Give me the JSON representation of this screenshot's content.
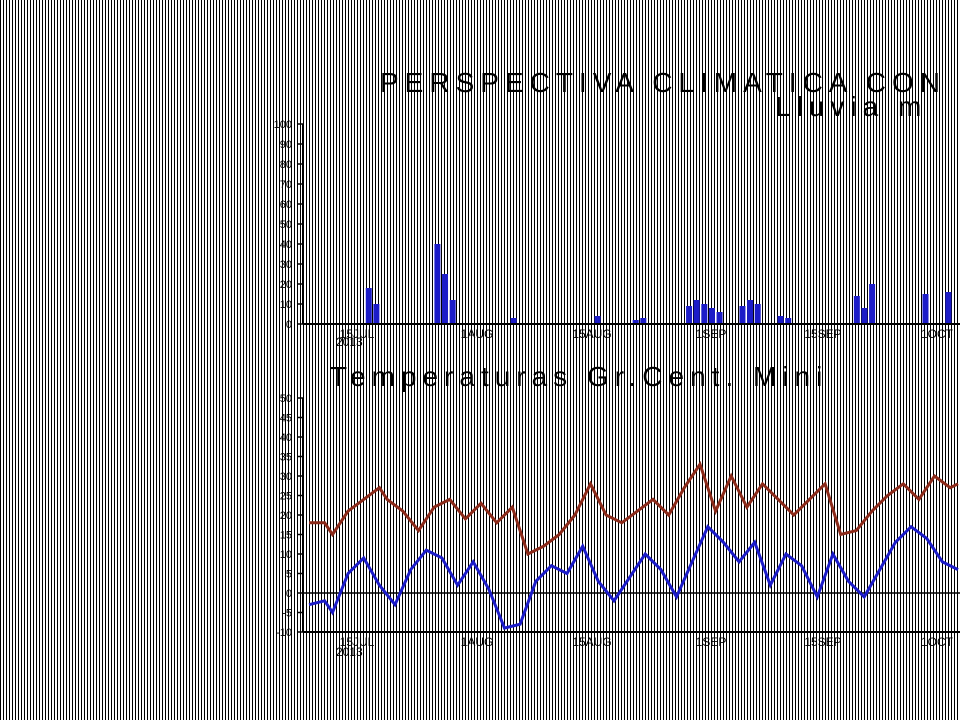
{
  "colors": {
    "rain": "#1c1cc8",
    "tmax": "#8b2a1a",
    "tmin": "#1c1cc8",
    "axis": "#000000"
  },
  "chart_data": [
    {
      "type": "bar",
      "title": "PERSPECTIVA   CLIMATICA   CON",
      "subtitle": "Lluvia   m",
      "ylim": [
        0,
        100
      ],
      "yticks": [
        "0",
        "10",
        "20",
        "30",
        "40",
        "50",
        "60",
        "70",
        "80",
        "90",
        "100"
      ],
      "xticks": [
        "15JUL",
        "1AUG",
        "15AUG",
        "1SEP",
        "15SEP",
        "1OCT"
      ],
      "year_label": "2013",
      "xlim": [
        0,
        83
      ],
      "series": [
        {
          "values": [
            [
              6,
              18
            ],
            [
              7,
              10
            ],
            [
              15,
              40
            ],
            [
              16,
              25
            ],
            [
              17,
              12
            ],
            [
              25,
              3
            ],
            [
              36,
              4
            ],
            [
              41,
              2
            ],
            [
              42,
              3
            ],
            [
              48,
              9
            ],
            [
              49,
              12
            ],
            [
              50,
              10
            ],
            [
              51,
              8
            ],
            [
              52,
              6
            ],
            [
              55,
              9
            ],
            [
              56,
              12
            ],
            [
              57,
              10
            ],
            [
              60,
              4
            ],
            [
              61,
              3
            ],
            [
              70,
              14
            ],
            [
              71,
              8
            ],
            [
              72,
              20
            ],
            [
              79,
              15
            ],
            [
              82,
              16
            ]
          ]
        }
      ]
    },
    {
      "type": "line",
      "title": "Temperaturas   Gr.Cent.   Mini",
      "ylim": [
        -10,
        50
      ],
      "yticks": [
        "50",
        "45",
        "40",
        "35",
        "30",
        "25",
        "20",
        "15",
        "10",
        "5",
        "0",
        "-5",
        "-10"
      ],
      "xticks": [
        "15JUL",
        "1AUG",
        "15AUG",
        "1SEP",
        "15SEP",
        "1OCT"
      ],
      "year_label": "2013",
      "xlim": [
        0,
        83
      ],
      "series": [
        {
          "values": [
            [
              0,
              18
            ],
            [
              2,
              18
            ],
            [
              3,
              15
            ],
            [
              5,
              21
            ],
            [
              7,
              24
            ],
            [
              9,
              27
            ],
            [
              10,
              24
            ],
            [
              12,
              21
            ],
            [
              14,
              16
            ],
            [
              16,
              22
            ],
            [
              18,
              24
            ],
            [
              20,
              19
            ],
            [
              22,
              23
            ],
            [
              24,
              18
            ],
            [
              26,
              22
            ],
            [
              28,
              10
            ],
            [
              30,
              12
            ],
            [
              32,
              15
            ],
            [
              34,
              20
            ],
            [
              36,
              28
            ],
            [
              38,
              20
            ],
            [
              40,
              18
            ],
            [
              42,
              21
            ],
            [
              44,
              24
            ],
            [
              46,
              20
            ],
            [
              48,
              27
            ],
            [
              50,
              33
            ],
            [
              52,
              21
            ],
            [
              54,
              30
            ],
            [
              56,
              22
            ],
            [
              58,
              28
            ],
            [
              60,
              24
            ],
            [
              62,
              20
            ],
            [
              64,
              24
            ],
            [
              66,
              28
            ],
            [
              68,
              15
            ],
            [
              70,
              16
            ],
            [
              72,
              21
            ],
            [
              74,
              25
            ],
            [
              76,
              28
            ],
            [
              78,
              24
            ],
            [
              80,
              30
            ],
            [
              82,
              27
            ],
            [
              83,
              28
            ]
          ]
        },
        {
          "values": [
            [
              0,
              -3
            ],
            [
              2,
              -2
            ],
            [
              3,
              -5
            ],
            [
              5,
              5
            ],
            [
              7,
              9
            ],
            [
              9,
              2
            ],
            [
              11,
              -3
            ],
            [
              13,
              6
            ],
            [
              15,
              11
            ],
            [
              17,
              9
            ],
            [
              19,
              2
            ],
            [
              21,
              8
            ],
            [
              23,
              1
            ],
            [
              25,
              -9
            ],
            [
              27,
              -8
            ],
            [
              29,
              3
            ],
            [
              31,
              7
            ],
            [
              33,
              5
            ],
            [
              35,
              12
            ],
            [
              37,
              3
            ],
            [
              39,
              -2
            ],
            [
              41,
              4
            ],
            [
              43,
              10
            ],
            [
              45,
              6
            ],
            [
              47,
              -1
            ],
            [
              49,
              8
            ],
            [
              51,
              17
            ],
            [
              53,
              13
            ],
            [
              55,
              8
            ],
            [
              57,
              13
            ],
            [
              59,
              2
            ],
            [
              61,
              10
            ],
            [
              63,
              7
            ],
            [
              65,
              -1
            ],
            [
              67,
              10
            ],
            [
              69,
              3
            ],
            [
              71,
              -1
            ],
            [
              73,
              6
            ],
            [
              75,
              13
            ],
            [
              77,
              17
            ],
            [
              79,
              14
            ],
            [
              81,
              8
            ],
            [
              83,
              6
            ]
          ]
        }
      ]
    }
  ]
}
